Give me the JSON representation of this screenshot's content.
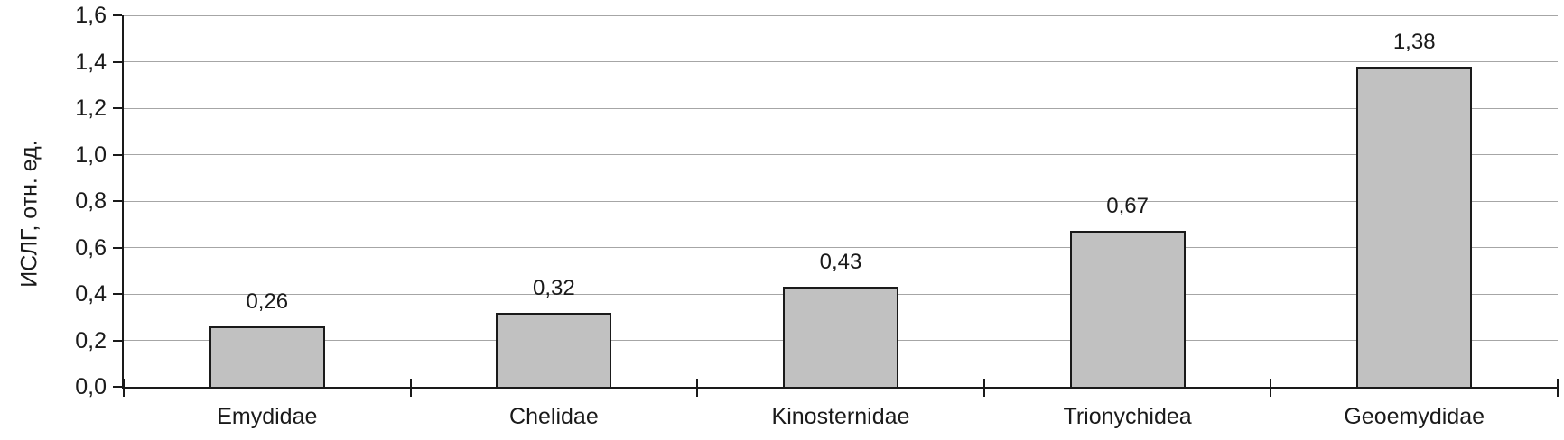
{
  "chart_data": {
    "type": "bar",
    "title": "",
    "xlabel": "",
    "ylabel": "ИСЛГ, отн. ед.",
    "categories": [
      "Emydidae",
      "Chelidae",
      "Kinosternidae",
      "Trionychidea",
      "Geoemydidae"
    ],
    "values": [
      0.26,
      0.32,
      0.43,
      0.67,
      1.38
    ],
    "data_labels": [
      "0,26",
      "0,32",
      "0,43",
      "0,67",
      "1,38"
    ],
    "ylim": [
      0,
      1.6
    ],
    "ytick_step": 0.2,
    "ytick_labels": [
      "0,0",
      "0,2",
      "0,4",
      "0,6",
      "0,8",
      "1,0",
      "1,2",
      "1,4",
      "1,6"
    ],
    "grid": "horizontal",
    "legend": "none",
    "decimal_separator": ",",
    "colors": {
      "bar_fill": "#c1c1c1",
      "bar_border": "#1a1a1a",
      "gridline": "#a6a6a6",
      "axis": "#1a1a1a",
      "text": "#1a1a1a",
      "background": "#ffffff"
    }
  }
}
